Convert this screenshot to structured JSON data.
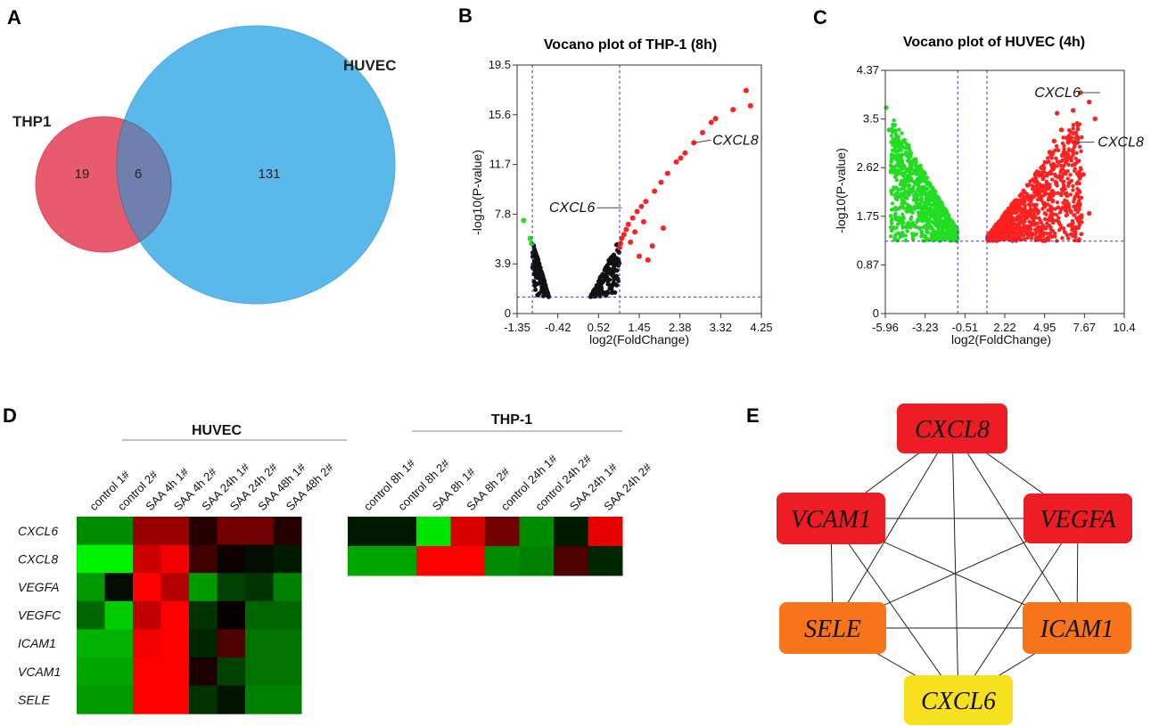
{
  "panels": {
    "a": "A",
    "b": "B",
    "c": "C",
    "d": "D",
    "e": "E"
  },
  "colors": {
    "thp1_circle": "#e85a6e",
    "huvec_circle": "#5bb8ea",
    "overlap": "#6f7fae",
    "up": "#ff2020",
    "down": "#22dd22",
    "ns": "#111111",
    "threshold": "#3333cc",
    "node_red": "#ee1c24",
    "node_orange": "#f7741a",
    "node_yellow": "#f7e01d"
  },
  "chart_data": [
    {
      "type": "venn",
      "sets": [
        {
          "name": "THP1",
          "only": 19
        },
        {
          "name": "HUVEC",
          "only": 131
        }
      ],
      "intersection": 6
    },
    {
      "type": "scatter",
      "title": "Vocano plot of THP-1 (8h)",
      "xlabel": "log2(FoldChange)",
      "ylabel": "-log10(P-value)",
      "xlim": [
        -1.35,
        4.25
      ],
      "ylim": [
        0,
        19.5
      ],
      "xticks": [
        "-1.35",
        "-0.42",
        "0.52",
        "1.45",
        "2.38",
        "3.32",
        "4.25"
      ],
      "yticks": [
        "0",
        "3.9",
        "7.8",
        "11.7",
        "15.6",
        "19.5"
      ],
      "vlines": [
        -1,
        1
      ],
      "hline": 1.3,
      "annotations": [
        {
          "label": "CXCL8",
          "x": 2.72,
          "y": 13.4
        },
        {
          "label": "CXCL6",
          "x": 1.05,
          "y": 8.3
        }
      ],
      "highlight_points": [
        [
          3.9,
          17.5
        ],
        [
          4.0,
          16.3
        ],
        [
          3.6,
          16.0
        ],
        [
          3.2,
          15.3
        ],
        [
          3.1,
          15.0
        ],
        [
          2.9,
          14.2
        ],
        [
          2.7,
          13.4
        ],
        [
          2.5,
          12.6
        ],
        [
          2.4,
          12.2
        ],
        [
          2.3,
          11.9
        ],
        [
          2.1,
          11.0
        ],
        [
          1.95,
          10.3
        ],
        [
          1.8,
          9.6
        ],
        [
          1.6,
          8.8
        ],
        [
          1.5,
          8.4
        ],
        [
          1.4,
          8.0
        ],
        [
          1.3,
          7.5
        ],
        [
          1.2,
          7.0
        ],
        [
          1.15,
          6.6
        ],
        [
          1.1,
          6.2
        ],
        [
          1.05,
          5.9
        ],
        [
          1.02,
          5.5
        ],
        [
          1.0,
          5.2
        ],
        [
          1.25,
          5.6
        ],
        [
          1.35,
          6.4
        ],
        [
          1.45,
          4.5
        ],
        [
          1.65,
          4.2
        ],
        [
          1.75,
          5.3
        ],
        [
          2.0,
          6.7
        ],
        [
          1.55,
          7.2
        ],
        [
          -1.2,
          7.3
        ],
        [
          -1.05,
          5.9
        ],
        [
          -1.02,
          5.5
        ]
      ]
    },
    {
      "type": "scatter",
      "title": "Vocano plot of HUVEC (4h)",
      "xlabel": "log2(FoldChange)",
      "ylabel": "-log10(P-value)",
      "xlim": [
        -5.96,
        10.4
      ],
      "ylim": [
        0,
        4.37
      ],
      "xticks": [
        "-5.96",
        "-3.23",
        "-0.51",
        "2.22",
        "4.95",
        "7.67",
        "10.4"
      ],
      "yticks": [
        "0",
        "0.87",
        "1.75",
        "2.62",
        "3.5",
        "4.37"
      ],
      "vlines": [
        -1,
        1
      ],
      "hline": 1.3,
      "annotations": [
        {
          "label": "CXCL6",
          "x": 7.4,
          "y": 3.97
        },
        {
          "label": "CXCL8",
          "x": 7.0,
          "y": 3.08
        }
      ],
      "highlight_points": [
        [
          7.4,
          3.97
        ],
        [
          7.0,
          3.08
        ],
        [
          8.0,
          3.8
        ],
        [
          8.4,
          3.5
        ],
        [
          6.9,
          3.65
        ],
        [
          5.8,
          3.6
        ],
        [
          6.1,
          3.3
        ],
        [
          5.6,
          3.1
        ],
        [
          6.6,
          2.8
        ],
        [
          7.6,
          2.5
        ],
        [
          7.3,
          2.2
        ],
        [
          8.0,
          1.8
        ],
        [
          6.8,
          1.6
        ],
        [
          5.3,
          2.9
        ],
        [
          -5.9,
          3.7
        ],
        [
          -5.7,
          3.3
        ]
      ]
    },
    {
      "type": "heatmap",
      "groups": [
        {
          "name": "HUVEC",
          "columns": [
            "control 1#",
            "control 2#",
            "SAA 4h 1#",
            "SAA 4h 2#",
            "SAA 24h 1#",
            "SAA 24h 2#",
            "SAA 48h 1#",
            "SAA 48h 2#"
          ],
          "rows": [
            "CXCL6",
            "CXCL8",
            "VEGFA",
            "VEGFC",
            "ICAM1",
            "VCAM1",
            "SELE"
          ],
          "values": [
            [
              -0.55,
              -0.55,
              0.6,
              0.6,
              0.15,
              0.45,
              0.45,
              0.15
            ],
            [
              -0.95,
              -0.95,
              0.8,
              0.95,
              0.25,
              0.05,
              -0.05,
              -0.1
            ],
            [
              -0.6,
              -0.05,
              1.0,
              0.7,
              -0.6,
              -0.25,
              -0.2,
              -0.5
            ],
            [
              -0.4,
              -0.8,
              0.75,
              1.0,
              -0.2,
              0.02,
              -0.4,
              -0.4
            ],
            [
              -0.7,
              -0.7,
              0.95,
              1.0,
              -0.15,
              0.3,
              -0.45,
              -0.45
            ],
            [
              -0.65,
              -0.65,
              1.0,
              1.0,
              0.1,
              -0.25,
              -0.45,
              -0.45
            ],
            [
              -0.6,
              -0.6,
              1.0,
              1.0,
              -0.2,
              -0.08,
              -0.5,
              -0.5
            ]
          ]
        },
        {
          "name": "THP-1",
          "columns": [
            "control 8h 1#",
            "control 8h 2#",
            "SAA 8h 1#",
            "SAA 8h 2#",
            "control 24h 1#",
            "control 24h 2#",
            "SAA 24h 1#",
            "SAA 24h 2#"
          ],
          "rows": [
            "CXCL6",
            "CXCL8"
          ],
          "values": [
            [
              -0.1,
              -0.1,
              -0.9,
              0.85,
              0.45,
              -0.55,
              -0.1,
              0.9
            ],
            [
              -0.65,
              -0.65,
              1.0,
              1.0,
              -0.55,
              -0.5,
              0.3,
              -0.15
            ]
          ]
        }
      ]
    },
    {
      "type": "network",
      "nodes": [
        {
          "id": "CXCL8",
          "label": "CXCL8",
          "color": "red"
        },
        {
          "id": "VCAM1",
          "label": "VCAM1",
          "color": "red"
        },
        {
          "id": "VEGFA",
          "label": "VEGFA",
          "color": "red"
        },
        {
          "id": "SELE",
          "label": "SELE",
          "color": "orange"
        },
        {
          "id": "ICAM1",
          "label": "ICAM1",
          "color": "orange"
        },
        {
          "id": "CXCL6",
          "label": "CXCL6",
          "color": "yellow"
        }
      ],
      "edges": [
        [
          "CXCL8",
          "VCAM1"
        ],
        [
          "CXCL8",
          "VEGFA"
        ],
        [
          "CXCL8",
          "SELE"
        ],
        [
          "CXCL8",
          "ICAM1"
        ],
        [
          "CXCL8",
          "CXCL6"
        ],
        [
          "VCAM1",
          "VEGFA"
        ],
        [
          "VCAM1",
          "SELE"
        ],
        [
          "VCAM1",
          "ICAM1"
        ],
        [
          "VCAM1",
          "CXCL6"
        ],
        [
          "VEGFA",
          "SELE"
        ],
        [
          "VEGFA",
          "ICAM1"
        ],
        [
          "VEGFA",
          "CXCL6"
        ],
        [
          "SELE",
          "ICAM1"
        ],
        [
          "SELE",
          "CXCL6"
        ],
        [
          "ICAM1",
          "CXCL6"
        ]
      ]
    }
  ]
}
